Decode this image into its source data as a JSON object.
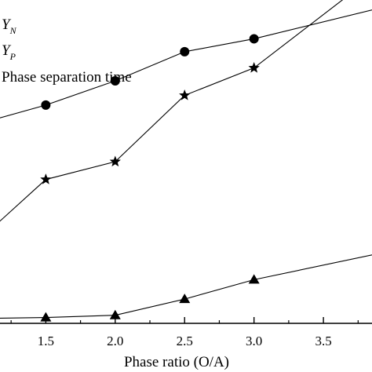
{
  "chart_data": {
    "type": "line",
    "xlabel": "Phase ratio (O/A)",
    "x_ticks": [
      "1.5",
      "2.0",
      "2.5",
      "3.0",
      "3.5"
    ],
    "xlim": [
      1.17,
      3.85
    ],
    "ylim": [
      0,
      100
    ],
    "grid": false,
    "legend_placement": "top-left",
    "legend": [
      {
        "base": "Y",
        "sub": "N",
        "marker": "circle"
      },
      {
        "base": "Y",
        "sub": "P",
        "marker": "star"
      },
      {
        "base": "Phase separation time",
        "sub": "",
        "marker": "triangle"
      }
    ],
    "series": [
      {
        "marker": "circle",
        "points": [
          {
            "x": 1.0,
            "y": 61.5
          },
          {
            "x": 1.5,
            "y": 67.5
          },
          {
            "x": 2.0,
            "y": 75.0
          },
          {
            "x": 2.5,
            "y": 84.0
          },
          {
            "x": 3.0,
            "y": 88.0
          },
          {
            "x": 4.0,
            "y": 98.5
          }
        ]
      },
      {
        "marker": "star",
        "points": [
          {
            "x": 1.0,
            "y": 25.0
          },
          {
            "x": 1.5,
            "y": 44.5
          },
          {
            "x": 2.0,
            "y": 50.0
          },
          {
            "x": 2.5,
            "y": 70.5
          },
          {
            "x": 3.0,
            "y": 79.0
          },
          {
            "x": 4.0,
            "y": 112.0
          }
        ]
      },
      {
        "marker": "triangle",
        "points": [
          {
            "x": 1.0,
            "y": 1.5
          },
          {
            "x": 1.5,
            "y": 1.8
          },
          {
            "x": 2.0,
            "y": 2.5
          },
          {
            "x": 2.5,
            "y": 7.5
          },
          {
            "x": 3.0,
            "y": 13.5
          },
          {
            "x": 4.0,
            "y": 22.5
          }
        ]
      }
    ]
  }
}
